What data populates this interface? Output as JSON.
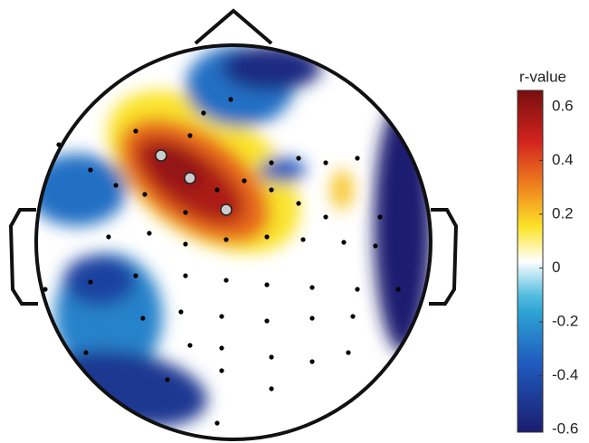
{
  "chart_data": {
    "type": "topomap",
    "colorbar_label": "r-value",
    "clim": [
      -0.61,
      0.66
    ],
    "cticks": [
      0.6,
      0.4,
      0.2,
      0,
      -0.2,
      -0.4,
      -0.6
    ],
    "regions": [
      {
        "value": 0.15
      },
      {
        "value": 0.35
      },
      {
        "value": 0.55
      },
      {
        "value": 0.6
      },
      {
        "value": 0.2
      },
      {
        "value": -0.3
      },
      {
        "value": -0.55
      },
      {
        "value": -0.6
      },
      {
        "value": -0.3
      },
      {
        "value": -0.45
      },
      {
        "value": -0.5
      },
      {
        "value": -0.35
      },
      {
        "value": -0.25
      }
    ]
  }
}
